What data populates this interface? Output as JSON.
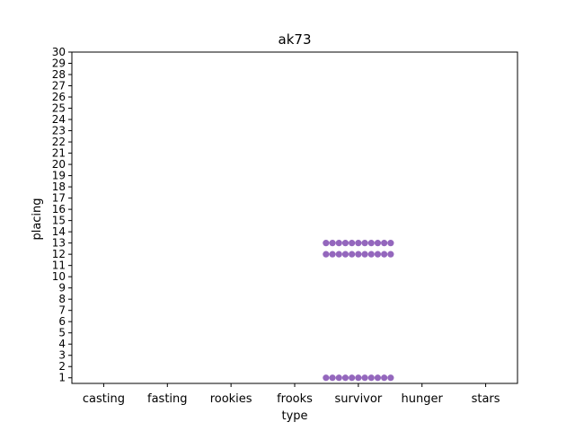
{
  "chart_data": {
    "type": "scatter",
    "title": "ak73",
    "xlabel": "type",
    "ylabel": "placing",
    "categories": [
      "casting",
      "fasting",
      "rookies",
      "frooks",
      "survivor",
      "hunger",
      "stars"
    ],
    "yticks": [
      1,
      2,
      3,
      4,
      5,
      6,
      7,
      8,
      9,
      10,
      11,
      12,
      13,
      14,
      15,
      16,
      17,
      18,
      19,
      20,
      21,
      22,
      23,
      24,
      25,
      26,
      27,
      28,
      29,
      30
    ],
    "ylim": [
      0.5,
      30
    ],
    "grid": false,
    "point_color": "#9467bd",
    "points": [
      {
        "category": "survivor",
        "placing": 1,
        "count": 11
      },
      {
        "category": "survivor",
        "placing": 12,
        "count": 11
      },
      {
        "category": "survivor",
        "placing": 13,
        "count": 11
      }
    ]
  }
}
